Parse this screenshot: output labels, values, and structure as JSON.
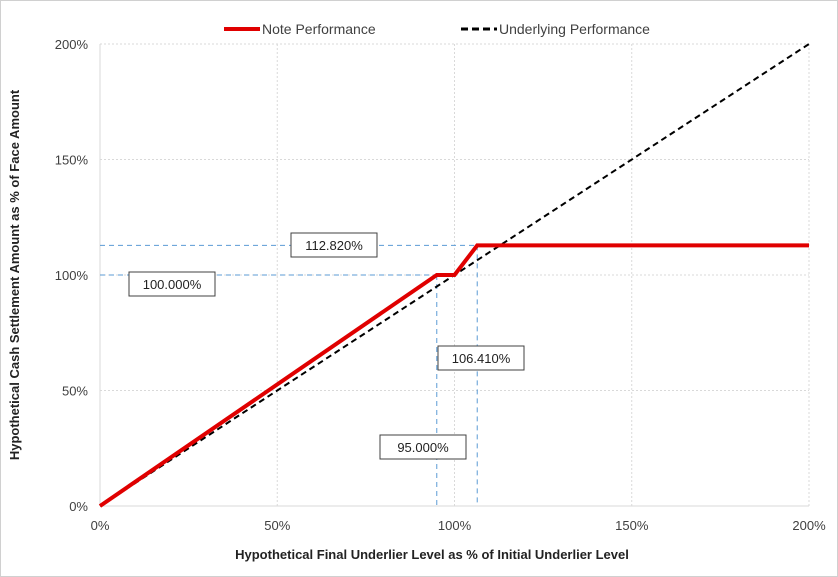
{
  "chart_data": {
    "type": "line",
    "xlabel": "Hypothetical Final Underlier Level as % of Initial Underlier Level",
    "ylabel": "Hypothetical Cash Settlement Amount as % of Face Amount",
    "xlim": [
      0,
      200
    ],
    "ylim": [
      0,
      200
    ],
    "x_ticks": [
      "0%",
      "50%",
      "100%",
      "150%",
      "200%"
    ],
    "y_ticks": [
      "0%",
      "50%",
      "100%",
      "150%",
      "200%"
    ],
    "grid": true,
    "legend_position": "top",
    "series": [
      {
        "name": "Note Performance",
        "color": "#e00000",
        "style": "solid",
        "x": [
          0,
          95,
          100,
          106.41,
          200
        ],
        "y": [
          0,
          100,
          100,
          112.82,
          112.82
        ]
      },
      {
        "name": "Underlying Performance",
        "color": "#000000",
        "style": "dashed",
        "x": [
          0,
          200
        ],
        "y": [
          0,
          200
        ]
      }
    ],
    "annotations": [
      {
        "label": "112.820%",
        "value": 112.82,
        "axis": "y"
      },
      {
        "label": "100.000%",
        "value": 100,
        "axis": "y"
      },
      {
        "label": "106.410%",
        "value": 106.41,
        "axis": "x"
      },
      {
        "label": "95.000%",
        "value": 95,
        "axis": "x"
      }
    ],
    "reference_line_color": "#5b9bd5"
  }
}
